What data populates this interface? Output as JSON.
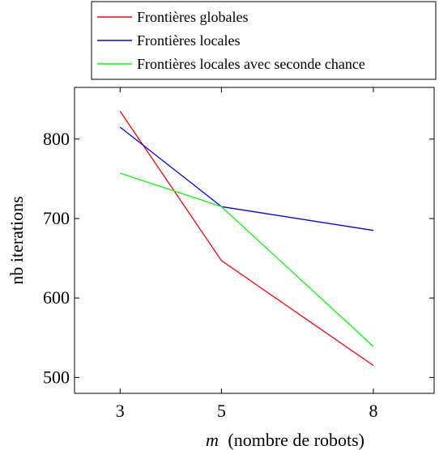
{
  "chart_data": {
    "type": "line",
    "x": [
      3,
      5,
      8
    ],
    "x_ticks": [
      "3",
      "5",
      "8"
    ],
    "y_ticks": [
      "500",
      "600",
      "700",
      "800"
    ],
    "xlabel": {
      "variable": "m",
      "rest": "(nombre de robots)"
    },
    "ylabel": "nb iterations",
    "xlim": [
      2.1,
      9.2
    ],
    "ylim": [
      480,
      865
    ],
    "grid": false,
    "legend_position": "top-right, above plot",
    "series": [
      {
        "name": "Frontières globales",
        "color": "#ff0000",
        "values": [
          835,
          647,
          515
        ]
      },
      {
        "name": "Frontières locales",
        "color": "#0000ff",
        "values": [
          815,
          715,
          685
        ]
      },
      {
        "name": "Frontières locales avec seconde chance",
        "color": "#00ff00",
        "values": [
          757,
          715,
          539
        ]
      }
    ]
  }
}
